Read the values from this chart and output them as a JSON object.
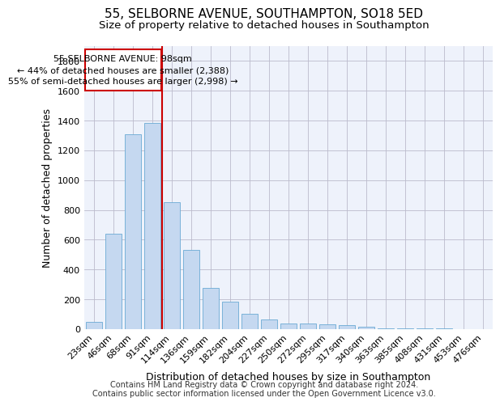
{
  "title": "55, SELBORNE AVENUE, SOUTHAMPTON, SO18 5ED",
  "subtitle": "Size of property relative to detached houses in Southampton",
  "xlabel": "Distribution of detached houses by size in Southampton",
  "ylabel": "Number of detached properties",
  "footer_line1": "Contains HM Land Registry data © Crown copyright and database right 2024.",
  "footer_line2": "Contains public sector information licensed under the Open Government Licence v3.0.",
  "bar_color": "#c5d8f0",
  "bar_edge_color": "#6aaad4",
  "background_color": "#eef2fb",
  "grid_color": "#bbbbcc",
  "annotation_box_color": "#cc0000",
  "vline_color": "#cc0000",
  "annotation_title": "55 SELBORNE AVENUE: 98sqm",
  "annotation_line1": "← 44% of detached houses are smaller (2,388)",
  "annotation_line2": "55% of semi-detached houses are larger (2,998) →",
  "categories": [
    "23sqm",
    "46sqm",
    "68sqm",
    "91sqm",
    "114sqm",
    "136sqm",
    "159sqm",
    "182sqm",
    "204sqm",
    "227sqm",
    "250sqm",
    "272sqm",
    "295sqm",
    "317sqm",
    "340sqm",
    "363sqm",
    "385sqm",
    "408sqm",
    "431sqm",
    "453sqm",
    "476sqm"
  ],
  "values": [
    50,
    640,
    1310,
    1385,
    850,
    530,
    275,
    185,
    105,
    65,
    38,
    38,
    30,
    25,
    15,
    5,
    5,
    5,
    5,
    0,
    0
  ],
  "ylim": [
    0,
    1900
  ],
  "yticks": [
    0,
    200,
    400,
    600,
    800,
    1000,
    1200,
    1400,
    1600,
    1800
  ],
  "vline_x": 3.5,
  "title_fontsize": 11,
  "subtitle_fontsize": 9.5,
  "xlabel_fontsize": 9,
  "ylabel_fontsize": 9,
  "tick_fontsize": 8,
  "annotation_fontsize": 8,
  "footer_fontsize": 7
}
